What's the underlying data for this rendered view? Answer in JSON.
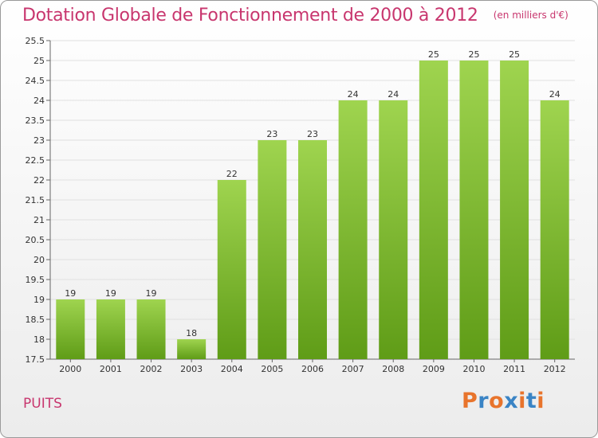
{
  "commune": "PUITS",
  "logo": {
    "letters": [
      "P",
      "r",
      "o",
      "x",
      "i",
      "t",
      "i"
    ],
    "colors": [
      "#e8742c",
      "#3a84c5",
      "#e8742c",
      "#3a84c5",
      "#e8742c",
      "#3a84c5",
      "#e8742c"
    ]
  },
  "colors": {
    "bar_top": "#9fd44f",
    "bar_bottom": "#5f9c17",
    "title": "#c8366e",
    "grid": "#e0e0e0"
  },
  "chart_data": {
    "type": "bar",
    "title": "Dotation Globale de Fonctionnement de 2000 à 2012",
    "subtitle": "(en milliers d'€)",
    "categories": [
      "2000",
      "2001",
      "2002",
      "2003",
      "2004",
      "2005",
      "2006",
      "2007",
      "2008",
      "2009",
      "2010",
      "2011",
      "2012"
    ],
    "values": [
      19,
      19,
      19,
      18,
      22,
      23,
      23,
      24,
      24,
      25,
      25,
      25,
      24
    ],
    "ylim": [
      17.5,
      25.5
    ],
    "yticks": [
      "17.5",
      "18",
      "18.5",
      "19",
      "19.5",
      "20",
      "20.5",
      "21",
      "21.5",
      "22",
      "22.5",
      "23",
      "23.5",
      "24",
      "24.5",
      "25",
      "25.5"
    ],
    "grid": true,
    "legend": "none"
  }
}
